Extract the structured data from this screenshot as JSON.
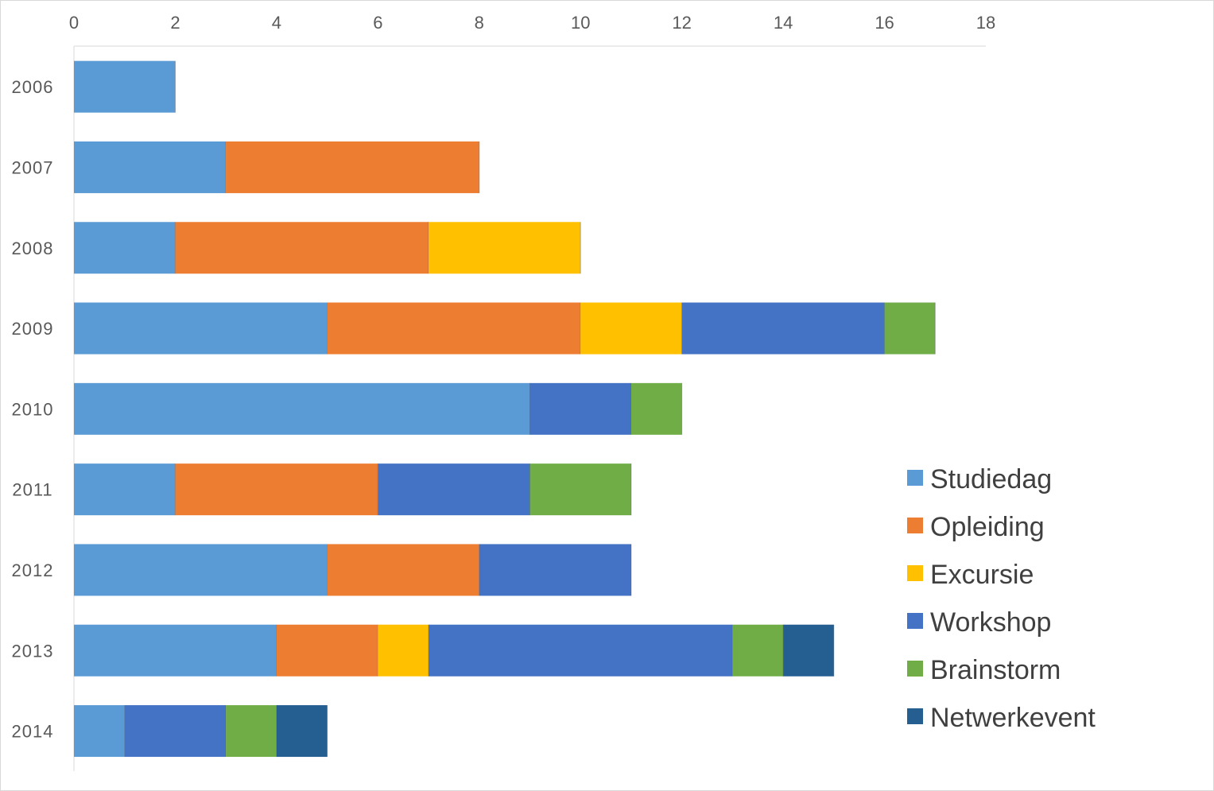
{
  "chart_data": {
    "type": "bar",
    "orientation": "horizontal",
    "stacked": true,
    "title": "",
    "xlabel": "",
    "ylabel": "",
    "categories": [
      "2006",
      "2007",
      "2008",
      "2009",
      "2010",
      "2011",
      "2012",
      "2013",
      "2014"
    ],
    "xlim": [
      0,
      18
    ],
    "x_ticks": [
      0,
      2,
      4,
      6,
      8,
      10,
      12,
      14,
      16,
      18
    ],
    "x_axis_position": "top",
    "grid": false,
    "legend_position": "right",
    "series": [
      {
        "name": "Studiedag",
        "color": "#5B9BD5",
        "values": [
          2,
          3,
          2,
          5,
          9,
          2,
          5,
          4,
          1
        ]
      },
      {
        "name": "Opleiding",
        "color": "#ED7D31",
        "values": [
          0,
          5,
          5,
          5,
          0,
          4,
          3,
          2,
          0
        ]
      },
      {
        "name": "Excursie",
        "color": "#FFC000",
        "values": [
          0,
          0,
          3,
          2,
          0,
          0,
          0,
          1,
          0
        ]
      },
      {
        "name": "Workshop",
        "color": "#4472C4",
        "values": [
          0,
          0,
          0,
          4,
          2,
          3,
          3,
          6,
          2
        ]
      },
      {
        "name": "Brainstorm",
        "color": "#70AD47",
        "values": [
          0,
          0,
          0,
          1,
          1,
          2,
          0,
          1,
          1
        ]
      },
      {
        "name": "Netwerkevent",
        "color": "#255E91",
        "values": [
          0,
          0,
          0,
          0,
          0,
          0,
          0,
          1,
          1
        ]
      }
    ]
  }
}
